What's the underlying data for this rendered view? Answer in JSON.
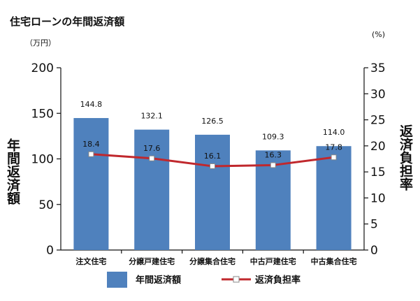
{
  "chart_data": {
    "type": "bar",
    "title": "住宅ローンの年間返済額",
    "left_unit": "（万円）",
    "right_unit": "(%)",
    "ylabel_left": "年間返済額",
    "ylabel_right": "返済負担率",
    "categories": [
      "注文住宅",
      "分譲戸建住宅",
      "分譲集合住宅",
      "中古戸建住宅",
      "中古集合住宅"
    ],
    "series": [
      {
        "name": "年間返済額",
        "type": "bar",
        "axis": "left",
        "values": [
          144.8,
          132.1,
          126.5,
          109.3,
          114.0
        ],
        "labels": [
          "144.8",
          "132.1",
          "126.5",
          "109.3",
          "114.0"
        ],
        "color": "#4f81bd"
      },
      {
        "name": "返済負担率",
        "type": "line",
        "axis": "right",
        "values": [
          18.4,
          17.6,
          16.1,
          16.3,
          17.8
        ],
        "labels": [
          "18.4",
          "17.6",
          "16.1",
          "16.3",
          "17.8"
        ],
        "color": "#c0282d"
      }
    ],
    "ylim_left": [
      0,
      200
    ],
    "yticks_left": [
      "0",
      "50",
      "100",
      "150",
      "200"
    ],
    "ylim_right": [
      0,
      35
    ],
    "yticks_right": [
      "0",
      "5",
      "10",
      "15",
      "20",
      "25",
      "30",
      "35"
    ],
    "grid": false,
    "legend_position": "bottom"
  }
}
